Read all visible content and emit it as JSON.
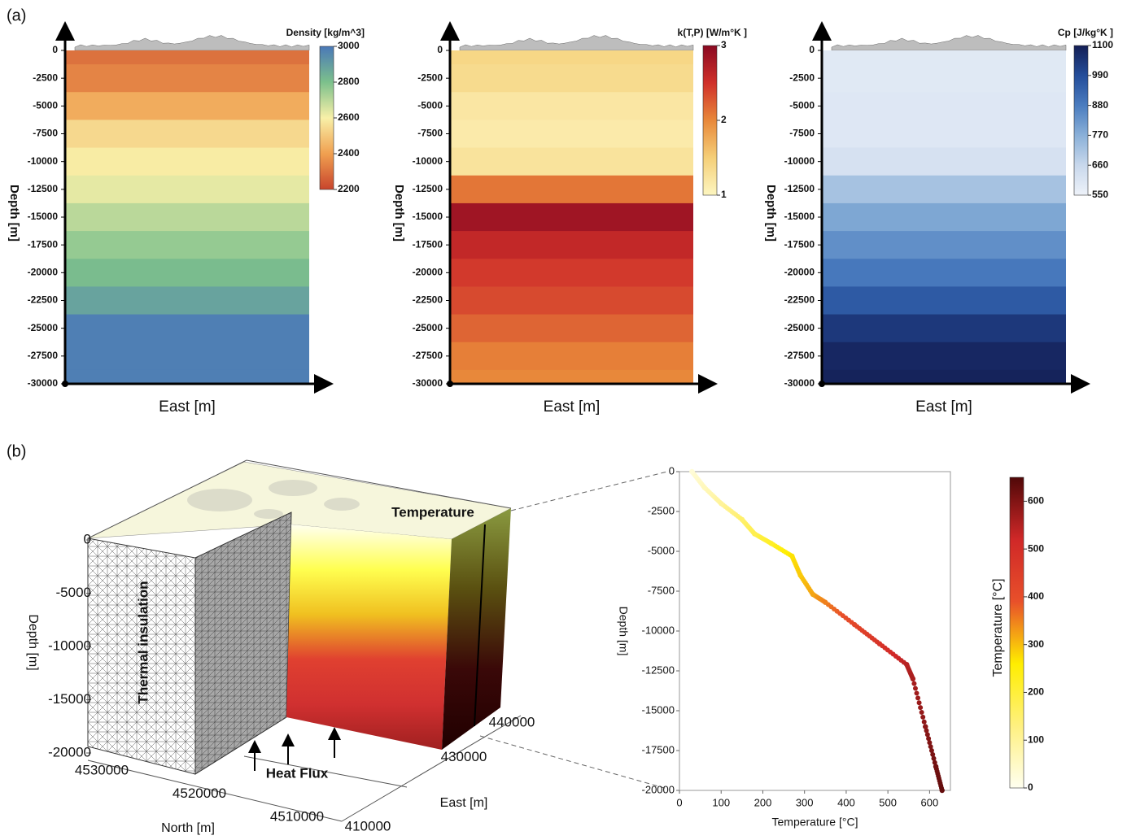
{
  "panels": [
    "(a)",
    "(b)"
  ],
  "chart_data": [
    {
      "type": "heatmap",
      "colorbar_label": "Density [kg/m^3]",
      "ylabel": "Depth [m]",
      "xlabel": "East [m]",
      "ylim": [
        -30000,
        0
      ],
      "yticks": [
        0,
        -2500,
        -5000,
        -7500,
        -10000,
        -12500,
        -15000,
        -17500,
        -20000,
        -22500,
        -25000,
        -27500,
        -30000
      ],
      "y": [
        0,
        -2500,
        -5000,
        -7500,
        -10000,
        -12500,
        -15000,
        -17500,
        -20000,
        -22500,
        -25000,
        -27500,
        -30000
      ],
      "values": [
        2300,
        2340,
        2430,
        2540,
        2590,
        2630,
        2700,
        2760,
        2810,
        2880,
        2980,
        2980,
        2980
      ],
      "clim": [
        2200,
        3000
      ],
      "cticks": [
        3000,
        2800,
        2600,
        2400,
        2200
      ],
      "colors": [
        "#c8442c",
        "#f0a050",
        "#f8f0a8",
        "#7cc08c",
        "#4a78b8"
      ]
    },
    {
      "type": "heatmap",
      "colorbar_label": "k(T,P) [W/m°K ]",
      "ylabel": "Depth [m]",
      "xlabel": "East [m]",
      "ylim": [
        -30000,
        0
      ],
      "yticks": [
        0,
        -2500,
        -5000,
        -7500,
        -10000,
        -12500,
        -15000,
        -17500,
        -20000,
        -22500,
        -25000,
        -27500,
        -30000
      ],
      "y": [
        0,
        -2500,
        -5000,
        -7500,
        -10000,
        -12500,
        -15000,
        -17500,
        -20000,
        -22500,
        -25000,
        -27500,
        -30000
      ],
      "values": [
        1.4,
        1.35,
        1.2,
        1.15,
        1.25,
        2.1,
        2.85,
        2.6,
        2.45,
        2.35,
        2.2,
        2.05,
        2.0
      ],
      "clim": [
        1,
        3
      ],
      "cticks": [
        3,
        2,
        1
      ],
      "colors": [
        "#fdf6c0",
        "#f5cf78",
        "#e8883a",
        "#d0302a",
        "#8a0a22"
      ]
    },
    {
      "type": "heatmap",
      "colorbar_label": "Cp [J/kg°K ]",
      "ylabel": "Depth [m]",
      "xlabel": "East [m]",
      "ylim": [
        -30000,
        0
      ],
      "yticks": [
        0,
        -2500,
        -5000,
        -7500,
        -10000,
        -12500,
        -15000,
        -17500,
        -20000,
        -22500,
        -25000,
        -27500,
        -30000
      ],
      "y": [
        0,
        -2500,
        -5000,
        -7500,
        -10000,
        -12500,
        -15000,
        -17500,
        -20000,
        -22500,
        -25000,
        -27500,
        -30000
      ],
      "values": [
        590,
        590,
        595,
        595,
        620,
        720,
        790,
        840,
        890,
        960,
        1040,
        1080,
        1090
      ],
      "clim": [
        550,
        1100
      ],
      "cticks": [
        1100,
        990,
        880,
        770,
        660,
        550
      ],
      "colors": [
        "#eef2f9",
        "#c8d8ec",
        "#8ab0d8",
        "#4a7cbf",
        "#244d9a",
        "#141f55"
      ]
    },
    {
      "type": "block3d",
      "title": "Temperature",
      "annotations": [
        "Thermal insulation",
        "Heat Flux"
      ],
      "zlabel": "Depth [m]",
      "ylabel": "North [m]",
      "xlabel": "East [m]",
      "zlim": [
        -20000,
        0
      ],
      "zticks": [
        0,
        -5000,
        -10000,
        -15000,
        -20000
      ],
      "ylim": [
        4510000,
        4530000
      ],
      "yticks": [
        4530000,
        4520000,
        4510000
      ],
      "xlim": [
        410000,
        440000
      ],
      "xticks": [
        410000,
        430000,
        440000
      ],
      "colors": [
        "#fffff0",
        "#ffff50",
        "#f0c020",
        "#e04030",
        "#d03030",
        "#a02020"
      ]
    },
    {
      "type": "line",
      "xlabel": "Temperature [°C]",
      "ylabel": "Depth [m]",
      "xlim": [
        0,
        650
      ],
      "xticks": [
        0,
        100,
        200,
        300,
        400,
        500,
        600
      ],
      "ylim": [
        -20000,
        0
      ],
      "yticks": [
        0,
        -2500,
        -5000,
        -7500,
        -10000,
        -12500,
        -15000,
        -17500,
        -20000
      ],
      "x": [
        30,
        60,
        100,
        150,
        180,
        220,
        270,
        290,
        320,
        350,
        420,
        480,
        545,
        560,
        590,
        615,
        630
      ],
      "y": [
        0,
        -1000,
        -2000,
        -3000,
        -3900,
        -4500,
        -5300,
        -6500,
        -7700,
        -8200,
        -9600,
        -10800,
        -12100,
        -13000,
        -16000,
        -18500,
        -20000
      ],
      "colorbar_label": "Temperature [°C]",
      "clim": [
        0,
        650
      ],
      "cticks": [
        0,
        100,
        200,
        300,
        400,
        500,
        600
      ],
      "colors": [
        "#fffff0",
        "#fff080",
        "#ffee00",
        "#e8502a",
        "#d02828",
        "#500808"
      ]
    }
  ]
}
